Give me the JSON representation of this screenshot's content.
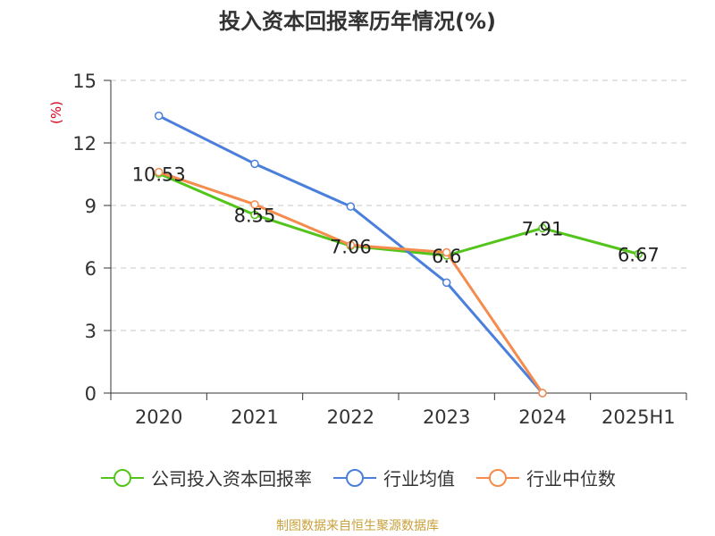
{
  "chart_data": {
    "type": "line",
    "title": "投入资本回报率历年情况(%)",
    "ylabel": "(%)",
    "categories": [
      "2020",
      "2021",
      "2022",
      "2023",
      "2024",
      "2025H1"
    ],
    "ylim": [
      0,
      15
    ],
    "yticks": [
      0,
      3,
      6,
      9,
      12,
      15
    ],
    "grid": true,
    "legend_position": "bottom",
    "series": [
      {
        "name": "公司投入资本回报率",
        "color": "#52c41a",
        "values": [
          10.53,
          8.55,
          7.06,
          6.6,
          7.91,
          6.67
        ],
        "labels": [
          "10.53",
          "8.55",
          "7.06",
          "6.6",
          "7.91",
          "6.67"
        ]
      },
      {
        "name": "行业均值",
        "color": "#4a7fdc",
        "values": [
          13.3,
          11.0,
          8.95,
          5.3,
          0,
          null
        ]
      },
      {
        "name": "行业中位数",
        "color": "#f58b4c",
        "values": [
          10.6,
          9.05,
          7.1,
          6.75,
          0,
          null
        ]
      }
    ]
  },
  "source": "制图数据来自恒生聚源数据库"
}
